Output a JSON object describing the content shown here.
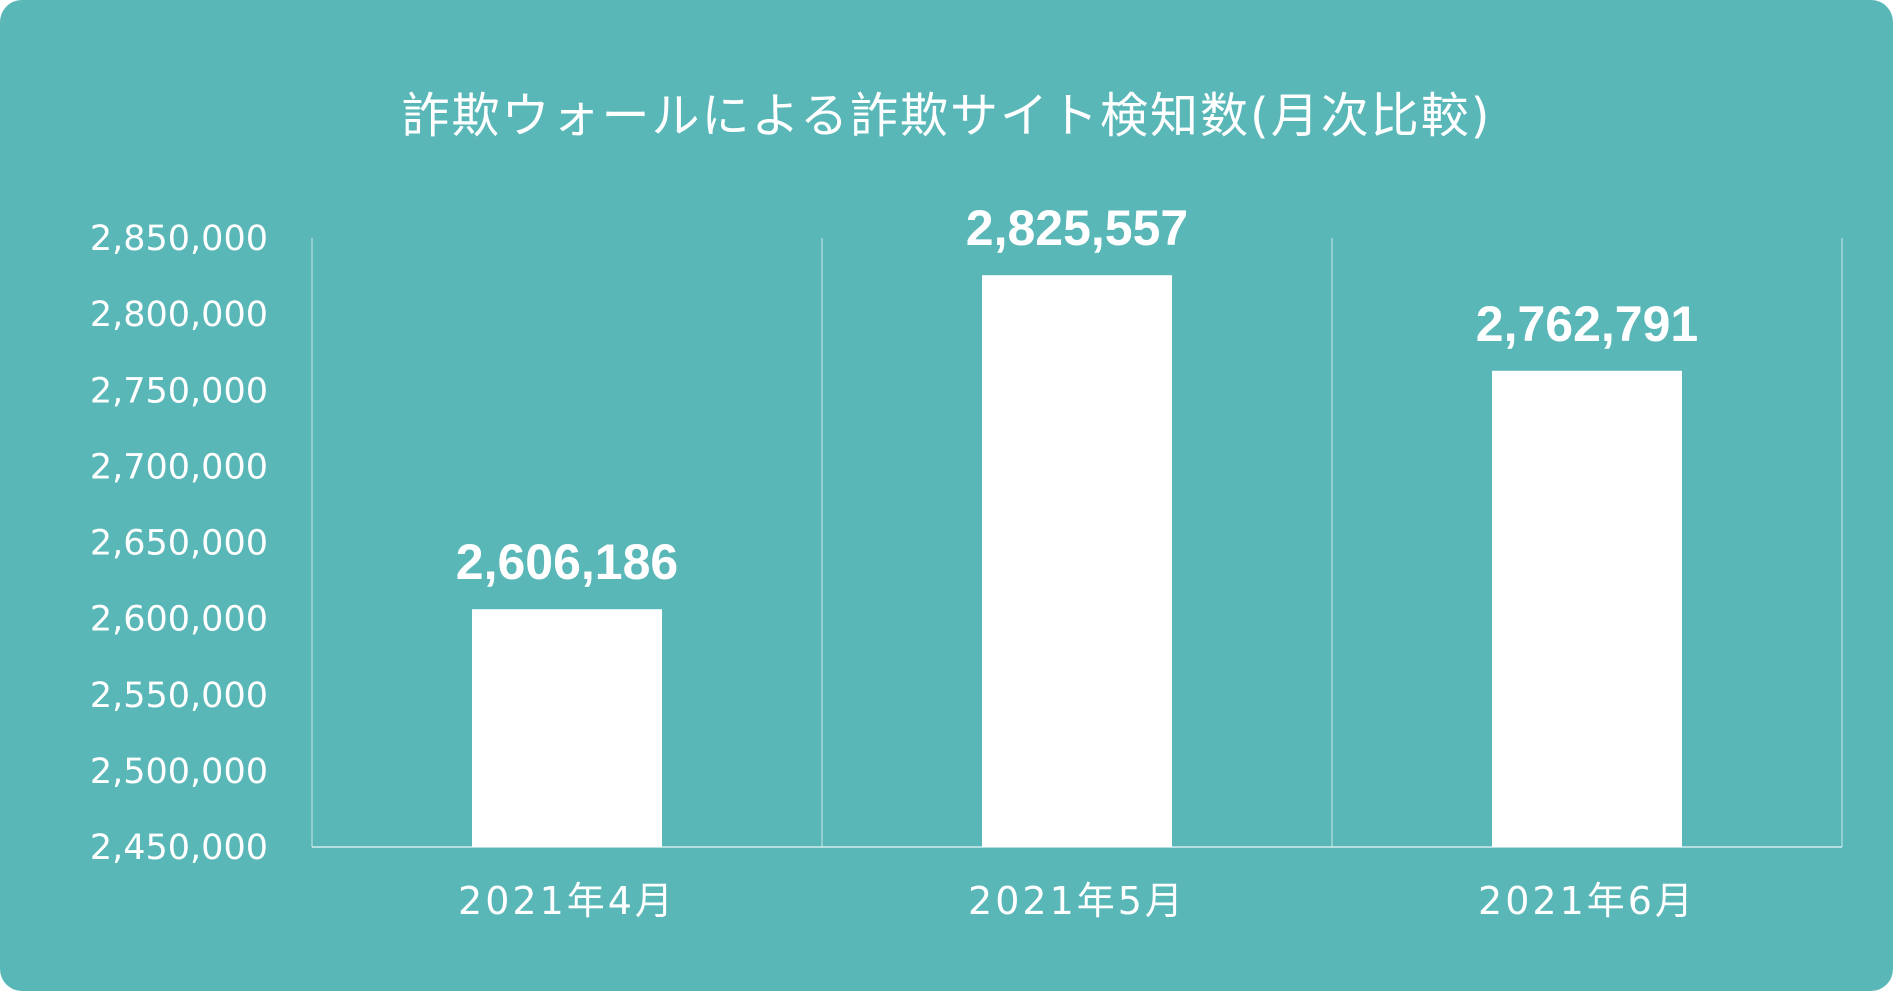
{
  "chart_data": {
    "type": "bar",
    "title": "詐欺ウォールによる詐欺サイト検知数(月次比較)",
    "categories": [
      "2021年4月",
      "2021年5月",
      "2021年6月"
    ],
    "values": [
      2606186,
      2825557,
      2762791
    ],
    "data_labels": [
      "2,606,186",
      "2,825,557",
      "2,762,791"
    ],
    "ylim": [
      2450000,
      2850000
    ],
    "yticks": [
      2450000,
      2500000,
      2550000,
      2600000,
      2650000,
      2700000,
      2750000,
      2800000,
      2850000
    ],
    "ytick_labels": [
      "2,450,000",
      "2,500,000",
      "2,550,000",
      "2,600,000",
      "2,650,000",
      "2,700,000",
      "2,750,000",
      "2,800,000",
      "2,850,000"
    ],
    "xlabel": "",
    "ylabel": "",
    "grid": "vertical separators between categories",
    "legend": "none",
    "colors": {
      "background": "#5ab7b8",
      "bar": "#ffffff",
      "text": "#ffffff"
    }
  }
}
